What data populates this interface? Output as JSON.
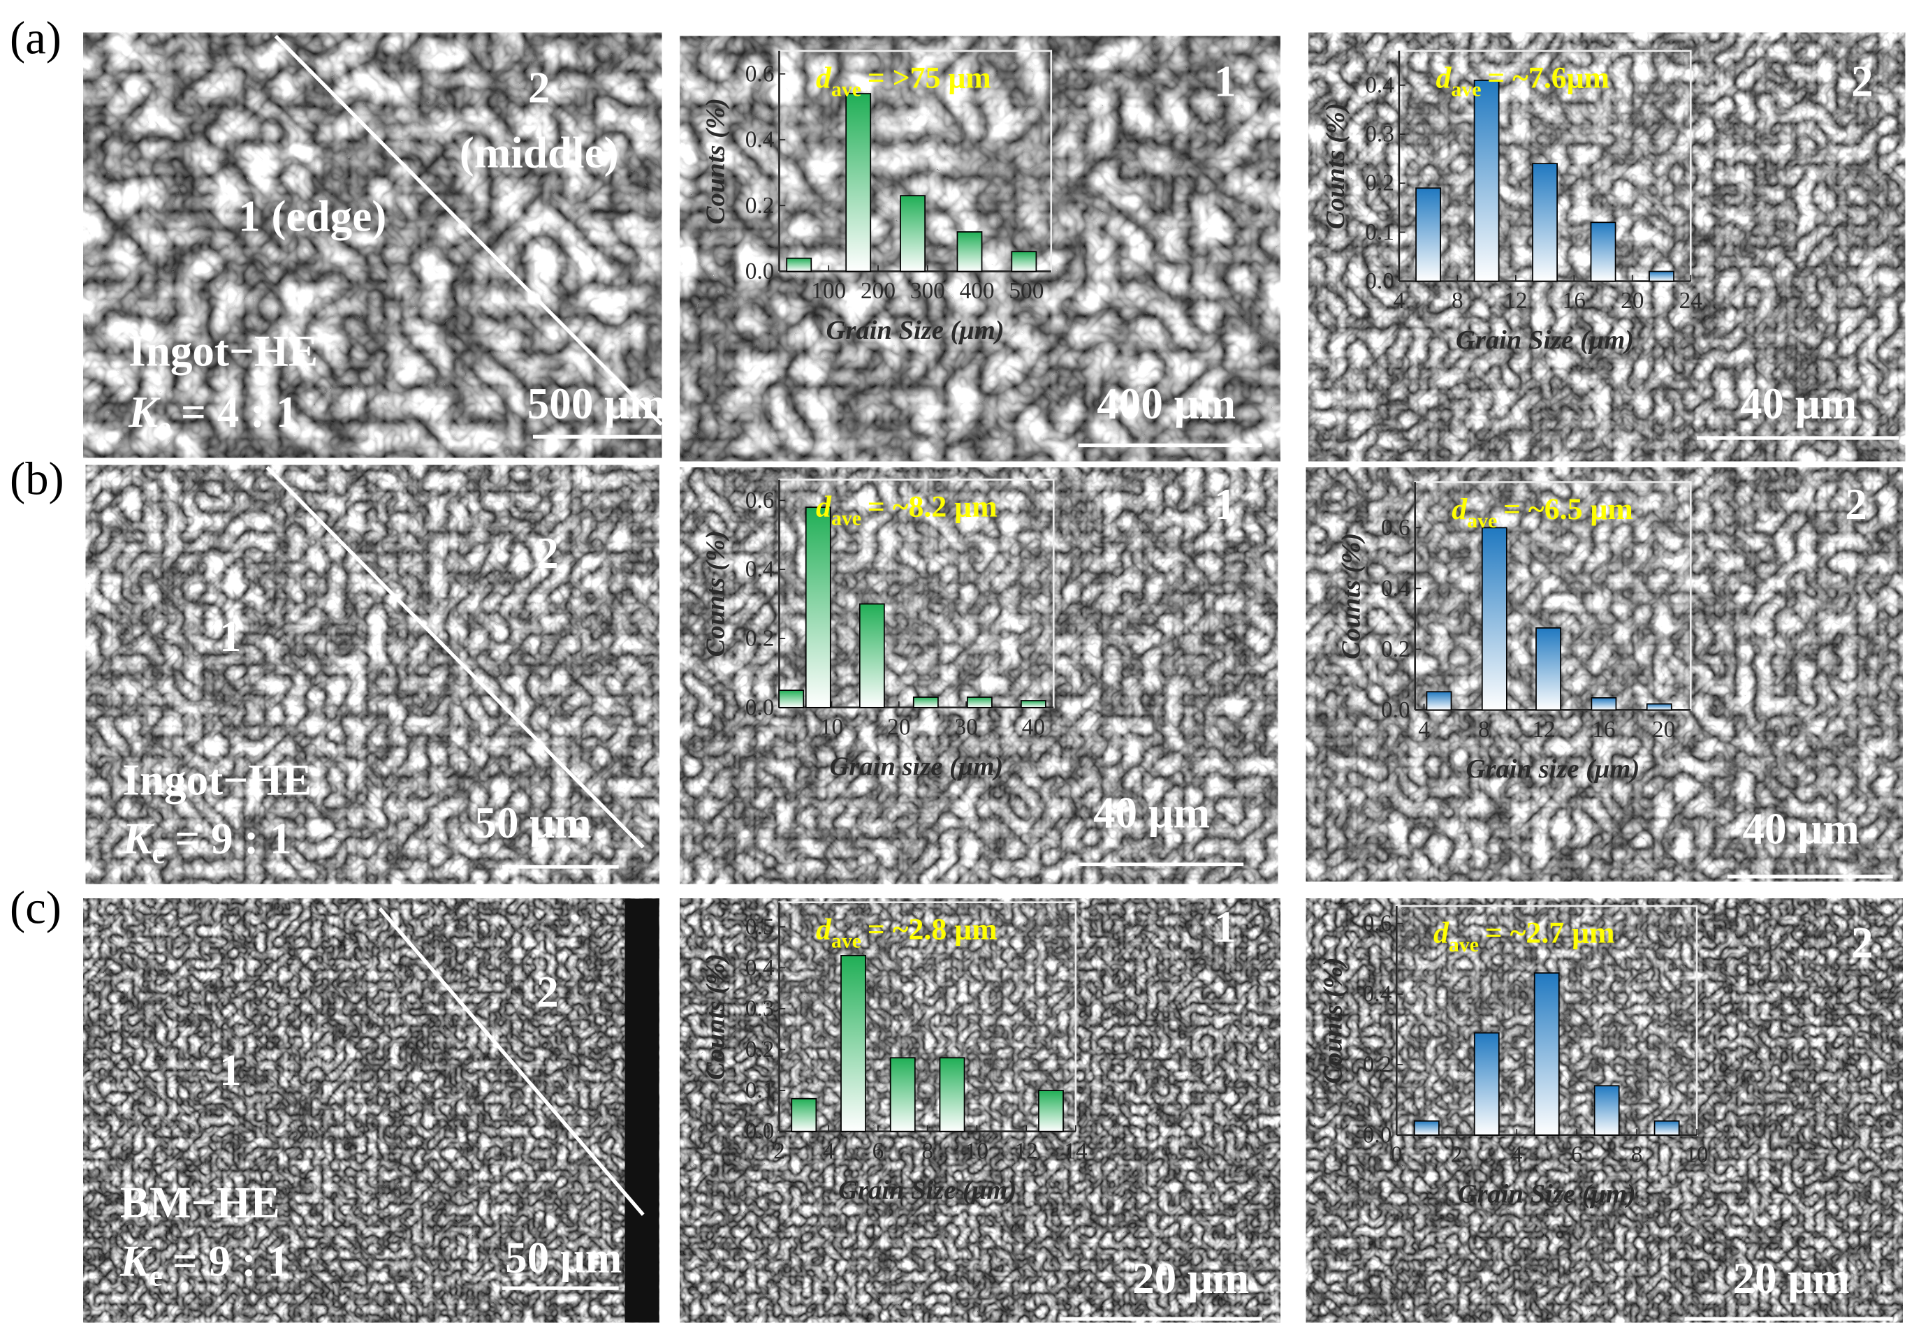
{
  "panels": [
    {
      "label": "(a)",
      "overview": {
        "region_labels": [
          "2",
          "(middle)",
          "1 (edge)"
        ],
        "sample": "Ingot−HE",
        "ke": {
          "symbol": "K",
          "subscript": "e",
          "ratio": "= 4 : 1"
        },
        "scale_bar": "500 μm"
      },
      "details": [
        {
          "region": "1",
          "scale_bar": "400 μm"
        },
        {
          "region": "2",
          "scale_bar": "40 μm"
        }
      ]
    },
    {
      "label": "(b)",
      "overview": {
        "region_labels": [
          "2",
          "1"
        ],
        "sample": "Ingot−HE",
        "ke": {
          "symbol": "K",
          "subscript": "e",
          "ratio": "= 9 : 1"
        },
        "scale_bar": "50 μm"
      },
      "details": [
        {
          "region": "1",
          "scale_bar": "40 μm"
        },
        {
          "region": "2",
          "scale_bar": "40 μm"
        }
      ]
    },
    {
      "label": "(c)",
      "overview": {
        "region_labels": [
          "2",
          "1"
        ],
        "sample": "BM−HE",
        "ke": {
          "symbol": "K",
          "subscript": "e",
          "ratio": "= 9 : 1"
        },
        "scale_bar": "50 μm"
      },
      "details": [
        {
          "region": "1",
          "scale_bar": "20 μm"
        },
        {
          "region": "2",
          "scale_bar": "20 μm"
        }
      ]
    }
  ],
  "chart_data": [
    {
      "type": "bar",
      "x": [
        40,
        160,
        270,
        385,
        495
      ],
      "values": [
        0.04,
        0.54,
        0.23,
        0.12,
        0.06
      ],
      "color": "#1fae55",
      "xlim": [
        0,
        550
      ],
      "xticks": [
        100,
        200,
        300,
        400,
        500
      ],
      "ylim": [
        0,
        0.67
      ],
      "yticks": [
        {
          "value": 0,
          "label": "0.0"
        },
        0.2,
        0.4,
        0.6
      ],
      "x_label": "Grain Size (μm)",
      "y_label": "Counts (%)",
      "annotation": {
        "symbol": "d",
        "subscript": "ave",
        "text": "= >75 μm"
      }
    },
    {
      "type": "bar",
      "x": [
        6,
        10,
        14,
        18,
        22
      ],
      "values": [
        0.19,
        0.41,
        0.24,
        0.12,
        0.02
      ],
      "color": "#1f78c0",
      "xlim": [
        4,
        24
      ],
      "xticks": [
        4,
        8,
        12,
        16,
        20,
        24
      ],
      "ylim": [
        0,
        0.47
      ],
      "yticks": [
        {
          "value": 0,
          "label": "0.0"
        },
        0.1,
        0.2,
        0.3,
        0.4
      ],
      "x_label": "Grain Size (μm)",
      "y_label": "Counts (%)",
      "annotation": {
        "symbol": "d",
        "subscript": "ave",
        "text": "= ~7.6μm"
      }
    },
    {
      "type": "bar",
      "x": [
        4,
        8,
        16,
        24,
        32,
        40
      ],
      "values": [
        0.05,
        0.58,
        0.3,
        0.03,
        0.03,
        0.02
      ],
      "color": "#1fae55",
      "xlim": [
        2.2,
        43
      ],
      "xticks": [
        10,
        20,
        30,
        40
      ],
      "ylim": [
        0,
        0.66
      ],
      "yticks": [
        {
          "value": 0,
          "label": "0.0"
        },
        0.2,
        0.4,
        0.6
      ],
      "x_label": "Grain size (μm)",
      "y_label": "Counts (%)",
      "annotation": {
        "symbol": "d",
        "subscript": "ave",
        "text": "= ~8.2 μm"
      }
    },
    {
      "type": "bar",
      "x": [
        5,
        8.7,
        12.3,
        16,
        19.7
      ],
      "values": [
        0.06,
        0.6,
        0.27,
        0.04,
        0.02
      ],
      "color": "#1f78c0",
      "xlim": [
        3.4,
        21.8
      ],
      "xticks": [
        4,
        8,
        12,
        16,
        20
      ],
      "ylim": [
        0,
        0.75
      ],
      "yticks": [
        {
          "value": 0,
          "label": "0.0"
        },
        0.2,
        0.4,
        0.6
      ],
      "x_label": "Grain size (μm)",
      "y_label": "Counts (%)",
      "annotation": {
        "symbol": "d",
        "subscript": "ave",
        "text": "= ~6.5 μm"
      }
    },
    {
      "type": "bar",
      "x": [
        3,
        5,
        7,
        9,
        13
      ],
      "values": [
        0.08,
        0.43,
        0.18,
        0.18,
        0.1
      ],
      "color": "#1fae55",
      "xlim": [
        2,
        14
      ],
      "xticks": [
        2,
        4,
        6,
        8,
        10,
        12,
        14
      ],
      "ylim": [
        0,
        0.56
      ],
      "yticks": [
        {
          "value": 0,
          "label": "0.0"
        },
        0.1,
        0.2,
        0.3,
        0.4,
        0.5
      ],
      "x_label": "Grain Size (μm)",
      "y_label": "Counts (%)",
      "annotation": {
        "symbol": "d",
        "subscript": "ave",
        "text": "= ~2.8 μm"
      }
    },
    {
      "type": "bar",
      "x": [
        1,
        3,
        5,
        7,
        9
      ],
      "values": [
        0.04,
        0.29,
        0.46,
        0.14,
        0.04
      ],
      "color": "#1f78c0",
      "xlim": [
        0,
        10
      ],
      "xticks": [
        0,
        2,
        4,
        6,
        8,
        10
      ],
      "ylim": [
        0,
        0.65
      ],
      "yticks": [
        {
          "value": 0,
          "label": "0.0"
        },
        0.2,
        0.4,
        0.6
      ],
      "x_label": "Grain Size (μm)",
      "y_label": "Counts (%)",
      "annotation": {
        "symbol": "d",
        "subscript": "ave",
        "text": "= ~2.7 μm"
      }
    }
  ]
}
